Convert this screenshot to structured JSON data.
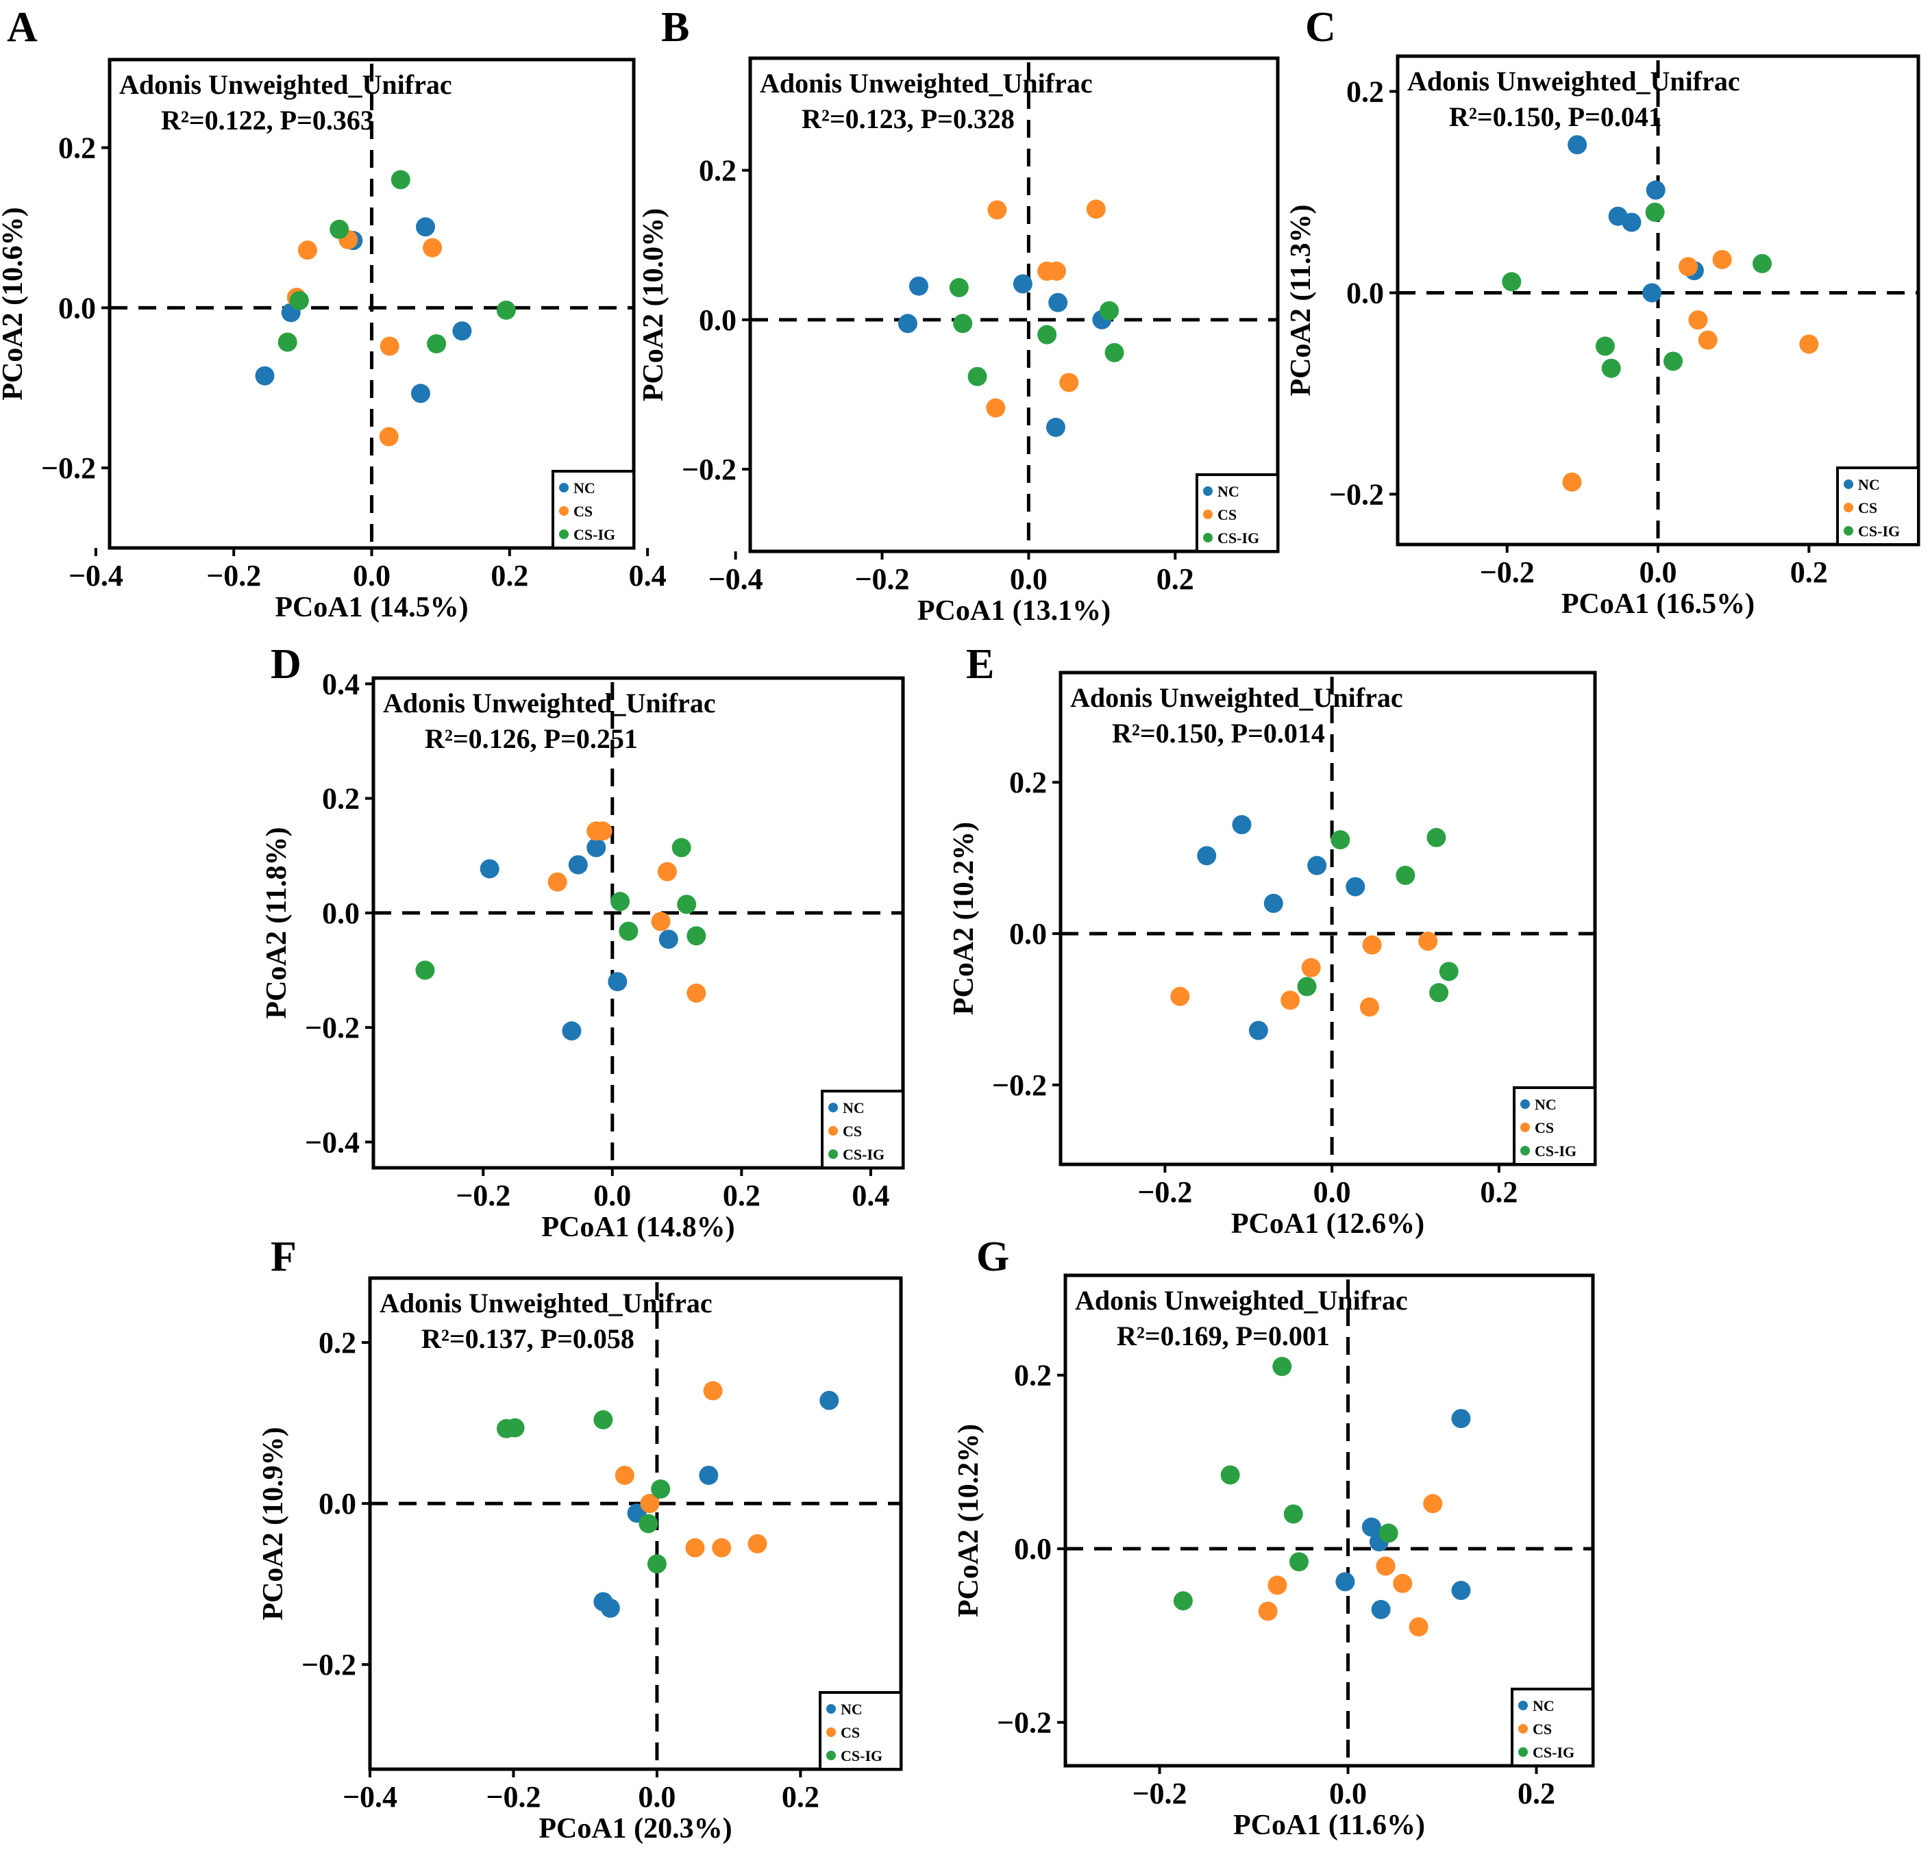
{
  "colors": {
    "NC": "#1f77b4",
    "CS": "#ff8c29",
    "CS-IG": "#2aa043"
  },
  "legend": [
    "NC",
    "CS",
    "CS-IG"
  ],
  "chart_data": [
    {
      "type": "scatter",
      "panel": "A",
      "title": "Adonis Unweighted_Unifrac",
      "stat": "R²=0.122, P=0.363",
      "xlabel": "PCoA1 (14.5%)",
      "ylabel": "PCoA2 (10.6%)",
      "xlim": [
        -0.38,
        0.38
      ],
      "ylim": [
        -0.3,
        0.31
      ],
      "xticks": [
        "-0.4",
        "-0.2",
        "0.0",
        "0.2",
        "0.4"
      ],
      "yticks": [
        "0.2",
        "0.0",
        "-0.2"
      ],
      "series": [
        {
          "name": "NC",
          "points": [
            [
              -0.155,
              -0.085
            ],
            [
              -0.117,
              -0.006
            ],
            [
              -0.027,
              0.084
            ],
            [
              0.078,
              0.101
            ],
            [
              0.131,
              -0.029
            ],
            [
              0.071,
              -0.107
            ]
          ]
        },
        {
          "name": "CS",
          "points": [
            [
              -0.093,
              0.072
            ],
            [
              -0.109,
              0.013
            ],
            [
              -0.034,
              0.085
            ],
            [
              0.088,
              0.075
            ],
            [
              0.026,
              -0.048
            ],
            [
              0.025,
              -0.161
            ]
          ]
        },
        {
          "name": "CS-IG",
          "points": [
            [
              -0.105,
              0.009
            ],
            [
              -0.122,
              -0.043
            ],
            [
              -0.047,
              0.098
            ],
            [
              0.042,
              0.16
            ],
            [
              0.094,
              -0.045
            ],
            [
              0.195,
              -0.003
            ]
          ]
        }
      ]
    },
    {
      "type": "scatter",
      "panel": "B",
      "title": "Adonis Unweighted_Unifrac",
      "stat": "R²=0.123, P=0.328",
      "xlabel": "PCoA1 (13.1%)",
      "ylabel": "PCoA2 (10.0%)",
      "xlim": [
        -0.38,
        0.34
      ],
      "ylim": [
        -0.31,
        0.35
      ],
      "xticks": [
        "-0.4",
        "-0.2",
        "0.0",
        "0.2"
      ],
      "yticks": [
        "0.2",
        "0.0",
        "-0.2"
      ],
      "series": [
        {
          "name": "NC",
          "points": [
            [
              -0.15,
              0.045
            ],
            [
              -0.165,
              -0.005
            ],
            [
              -0.008,
              0.048
            ],
            [
              0.04,
              0.023
            ],
            [
              0.1,
              0.0
            ],
            [
              0.037,
              -0.144
            ]
          ]
        },
        {
          "name": "CS",
          "points": [
            [
              -0.043,
              0.147
            ],
            [
              0.092,
              0.148
            ],
            [
              0.025,
              0.065
            ],
            [
              0.038,
              0.065
            ],
            [
              -0.045,
              -0.118
            ],
            [
              0.055,
              -0.084
            ]
          ]
        },
        {
          "name": "CS-IG",
          "points": [
            [
              -0.095,
              0.043
            ],
            [
              -0.09,
              -0.005
            ],
            [
              -0.07,
              -0.076
            ],
            [
              0.025,
              -0.02
            ],
            [
              0.11,
              0.012
            ],
            [
              0.117,
              -0.044
            ]
          ]
        }
      ]
    },
    {
      "type": "scatter",
      "panel": "C",
      "title": "Adonis Unweighted_Unifrac",
      "stat": "R²=0.150, P=0.041",
      "xlabel": "PCoA1 (16.5%)",
      "ylabel": "PCoA2 (11.3%)",
      "xlim": [
        -0.345,
        0.345
      ],
      "ylim": [
        -0.25,
        0.235
      ],
      "xticks": [
        "-0.2",
        "0.0",
        "0.2"
      ],
      "yticks": [
        "0.2",
        "0.0",
        "-0.2"
      ],
      "series": [
        {
          "name": "NC",
          "points": [
            [
              -0.107,
              0.147
            ],
            [
              -0.053,
              0.076
            ],
            [
              -0.035,
              0.07
            ],
            [
              -0.003,
              0.102
            ],
            [
              -0.008,
              0.0
            ],
            [
              0.048,
              0.022
            ]
          ]
        },
        {
          "name": "CS",
          "points": [
            [
              0.04,
              0.026
            ],
            [
              0.085,
              0.033
            ],
            [
              0.053,
              -0.027
            ],
            [
              0.066,
              -0.047
            ],
            [
              0.2,
              -0.051
            ],
            [
              -0.114,
              -0.188
            ]
          ]
        },
        {
          "name": "CS-IG",
          "points": [
            [
              -0.194,
              0.011
            ],
            [
              -0.004,
              0.08
            ],
            [
              -0.07,
              -0.053
            ],
            [
              -0.062,
              -0.075
            ],
            [
              0.02,
              -0.068
            ],
            [
              0.138,
              0.029
            ]
          ]
        }
      ]
    },
    {
      "type": "scatter",
      "panel": "D",
      "title": "Adonis Unweighted_Unifrac",
      "stat": "R²=0.126, P=0.251",
      "xlabel": "PCoA1 (14.8%)",
      "ylabel": "PCoA2 (11.8%)",
      "xlim": [
        -0.37,
        0.45
      ],
      "ylim": [
        -0.445,
        0.41
      ],
      "xticks": [
        "-0.2",
        "0.0",
        "0.2",
        "0.4"
      ],
      "yticks": [
        "0.4",
        "0.2",
        "0.0",
        "-0.2",
        "-0.4"
      ],
      "series": [
        {
          "name": "NC",
          "points": [
            [
              -0.19,
              0.077
            ],
            [
              -0.053,
              0.084
            ],
            [
              -0.025,
              0.114
            ],
            [
              0.087,
              -0.046
            ],
            [
              0.008,
              -0.12
            ],
            [
              -0.063,
              -0.206
            ]
          ]
        },
        {
          "name": "CS",
          "points": [
            [
              -0.085,
              0.054
            ],
            [
              -0.025,
              0.143
            ],
            [
              -0.015,
              0.143
            ],
            [
              0.085,
              0.072
            ],
            [
              0.075,
              -0.015
            ],
            [
              0.13,
              -0.14
            ]
          ]
        },
        {
          "name": "CS-IG",
          "points": [
            [
              -0.29,
              -0.1
            ],
            [
              0.012,
              0.02
            ],
            [
              0.025,
              -0.032
            ],
            [
              0.107,
              0.114
            ],
            [
              0.115,
              0.015
            ],
            [
              0.13,
              -0.04
            ]
          ]
        }
      ]
    },
    {
      "type": "scatter",
      "panel": "E",
      "title": "Adonis Unweighted_Unifrac",
      "stat": "R²=0.150, P=0.014",
      "xlabel": "PCoA1 (12.6%)",
      "ylabel": "PCoA2 (10.2%)",
      "xlim": [
        -0.325,
        0.315
      ],
      "ylim": [
        -0.305,
        0.345
      ],
      "xticks": [
        "-0.2",
        "0.0",
        "0.2"
      ],
      "yticks": [
        "0.2",
        "0.0",
        "-0.2"
      ],
      "series": [
        {
          "name": "NC",
          "points": [
            [
              -0.15,
              0.103
            ],
            [
              -0.108,
              0.144
            ],
            [
              -0.018,
              0.09
            ],
            [
              0.028,
              0.062
            ],
            [
              -0.07,
              0.04
            ],
            [
              -0.088,
              -0.128
            ]
          ]
        },
        {
          "name": "CS",
          "points": [
            [
              -0.182,
              -0.083
            ],
            [
              -0.025,
              -0.045
            ],
            [
              0.048,
              -0.015
            ],
            [
              0.115,
              -0.01
            ],
            [
              -0.05,
              -0.088
            ],
            [
              0.045,
              -0.097
            ]
          ]
        },
        {
          "name": "CS-IG",
          "points": [
            [
              0.01,
              0.124
            ],
            [
              0.088,
              0.077
            ],
            [
              0.125,
              0.127
            ],
            [
              -0.03,
              -0.07
            ],
            [
              0.128,
              -0.078
            ],
            [
              0.14,
              -0.05
            ]
          ]
        }
      ]
    },
    {
      "type": "scatter",
      "panel": "F",
      "title": "Adonis Unweighted_Unifrac",
      "stat": "R²=0.137, P=0.058",
      "xlabel": "PCoA1 (20.3%)",
      "ylabel": "PCoA2 (10.9%)",
      "xlim": [
        -0.4,
        0.34
      ],
      "ylim": [
        -0.33,
        0.28
      ],
      "xticks": [
        "-0.4",
        "-0.2",
        "0.0",
        "0.2"
      ],
      "yticks": [
        "0.2",
        "0.0",
        "-0.2"
      ],
      "series": [
        {
          "name": "NC",
          "points": [
            [
              0.24,
              0.128
            ],
            [
              0.072,
              0.035
            ],
            [
              -0.028,
              -0.012
            ],
            [
              -0.075,
              -0.122
            ],
            [
              -0.065,
              -0.13
            ],
            [
              -0.01,
              0.0
            ]
          ]
        },
        {
          "name": "CS",
          "points": [
            [
              0.078,
              0.14
            ],
            [
              -0.045,
              0.035
            ],
            [
              -0.01,
              0.0
            ],
            [
              0.053,
              -0.055
            ],
            [
              0.09,
              -0.055
            ],
            [
              0.14,
              -0.05
            ]
          ]
        },
        {
          "name": "CS-IG",
          "points": [
            [
              -0.21,
              0.093
            ],
            [
              -0.198,
              0.094
            ],
            [
              -0.075,
              0.104
            ],
            [
              0.005,
              0.018
            ],
            [
              -0.012,
              -0.025
            ],
            [
              0.0,
              -0.075
            ]
          ]
        }
      ]
    },
    {
      "type": "scatter",
      "panel": "G",
      "title": "Adonis Unweighted_Unifrac",
      "stat": "R²=0.169, P=0.001",
      "xlabel": "PCoA1 (11.6%)",
      "ylabel": "PCoA2 (10.2%)",
      "xlim": [
        -0.3,
        0.26
      ],
      "ylim": [
        -0.25,
        0.315
      ],
      "xticks": [
        "-0.2",
        "0.0",
        "0.2"
      ],
      "yticks": [
        "0.2",
        "0.0",
        "-0.2"
      ],
      "series": [
        {
          "name": "NC",
          "points": [
            [
              0.12,
              0.15
            ],
            [
              0.025,
              0.025
            ],
            [
              0.033,
              0.008
            ],
            [
              -0.003,
              -0.038
            ],
            [
              0.035,
              -0.07
            ],
            [
              0.12,
              -0.048
            ]
          ]
        },
        {
          "name": "CS",
          "points": [
            [
              0.09,
              0.052
            ],
            [
              0.04,
              -0.02
            ],
            [
              0.058,
              -0.04
            ],
            [
              -0.075,
              -0.042
            ],
            [
              -0.085,
              -0.072
            ],
            [
              0.075,
              -0.09
            ]
          ]
        },
        {
          "name": "CS-IG",
          "points": [
            [
              -0.07,
              0.21
            ],
            [
              -0.125,
              0.085
            ],
            [
              -0.058,
              0.04
            ],
            [
              -0.052,
              -0.015
            ],
            [
              0.043,
              0.018
            ],
            [
              -0.175,
              -0.06
            ]
          ]
        }
      ]
    }
  ]
}
